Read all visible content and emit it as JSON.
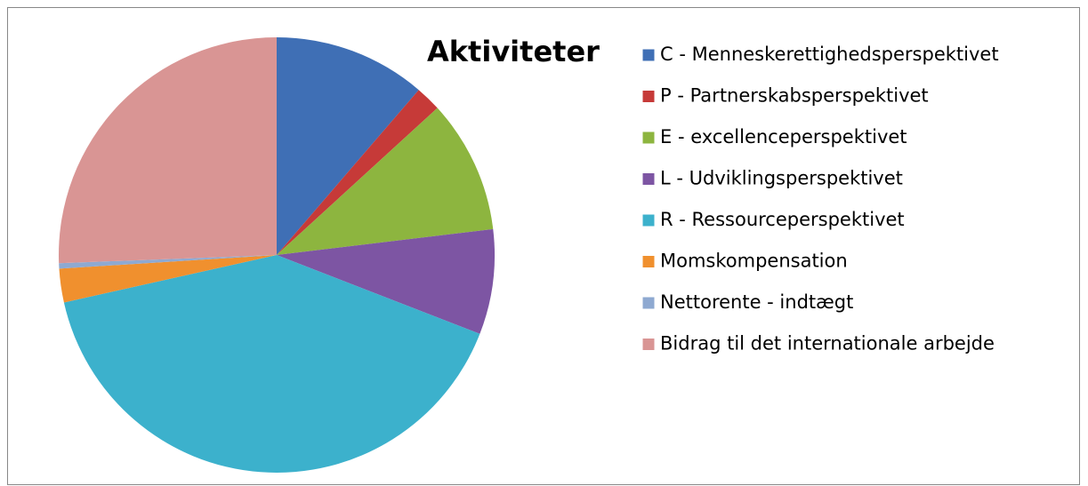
{
  "chart_data": {
    "type": "pie",
    "title": "Aktiviteter",
    "categories": [
      "C - Menneskerettighedsperspektivet",
      "P - Partnerskabsperspektivet",
      "E - excellenceperspektivet",
      "L - Udviklingsperspektivet",
      "R - Ressourceperspektivet",
      "Momskompensation",
      "Nettorente - indtægt",
      "Bidrag til det internationale arbejde"
    ],
    "values": [
      11.3,
      1.9,
      9.9,
      7.8,
      40.6,
      2.5,
      0.4,
      25.6
    ],
    "colors": [
      "#3f6fb5",
      "#c63a38",
      "#8db53f",
      "#7d55a3",
      "#3cb1cc",
      "#f0902e",
      "#8ea9d1",
      "#d99594"
    ],
    "legend": "right"
  }
}
